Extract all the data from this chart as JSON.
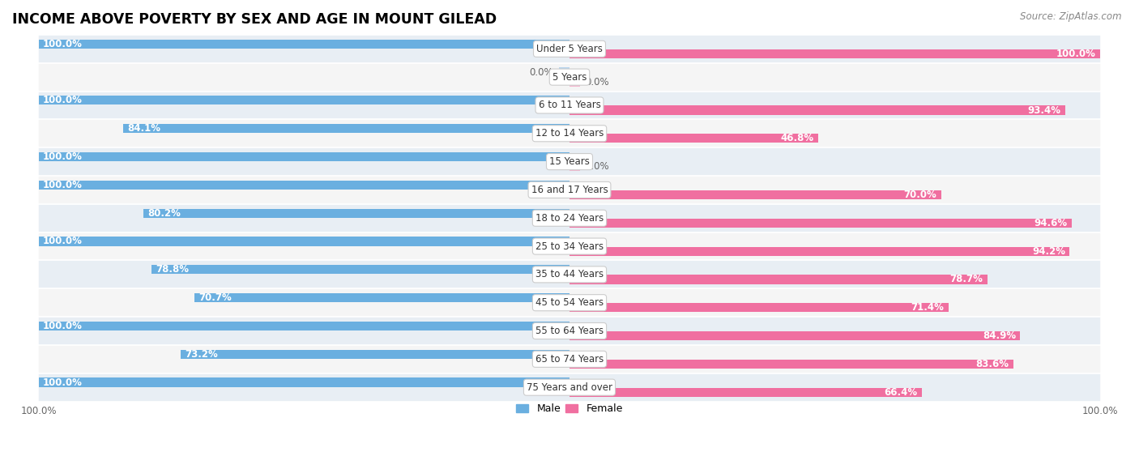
{
  "title": "INCOME ABOVE POVERTY BY SEX AND AGE IN MOUNT GILEAD",
  "source": "Source: ZipAtlas.com",
  "categories": [
    "Under 5 Years",
    "5 Years",
    "6 to 11 Years",
    "12 to 14 Years",
    "15 Years",
    "16 and 17 Years",
    "18 to 24 Years",
    "25 to 34 Years",
    "35 to 44 Years",
    "45 to 54 Years",
    "55 to 64 Years",
    "65 to 74 Years",
    "75 Years and over"
  ],
  "male": [
    100.0,
    0.0,
    100.0,
    84.1,
    100.0,
    100.0,
    80.2,
    100.0,
    78.8,
    70.7,
    100.0,
    73.2,
    100.0
  ],
  "female": [
    100.0,
    0.0,
    93.4,
    46.8,
    0.0,
    70.0,
    94.6,
    94.2,
    78.7,
    71.4,
    84.9,
    83.6,
    66.4
  ],
  "male_color": "#6aafe0",
  "female_color": "#f06fa0",
  "male_zero_color": "#b8d4ee",
  "female_zero_color": "#f5b8d0",
  "male_label": "Male",
  "female_label": "Female",
  "bg_colors": [
    "#e8eef4",
    "#f5f5f5"
  ],
  "bar_height": 0.32,
  "title_fontsize": 12.5,
  "source_fontsize": 8.5,
  "value_fontsize": 8.5,
  "category_fontsize": 8.5,
  "legend_fontsize": 9,
  "tick_fontsize": 8.5
}
